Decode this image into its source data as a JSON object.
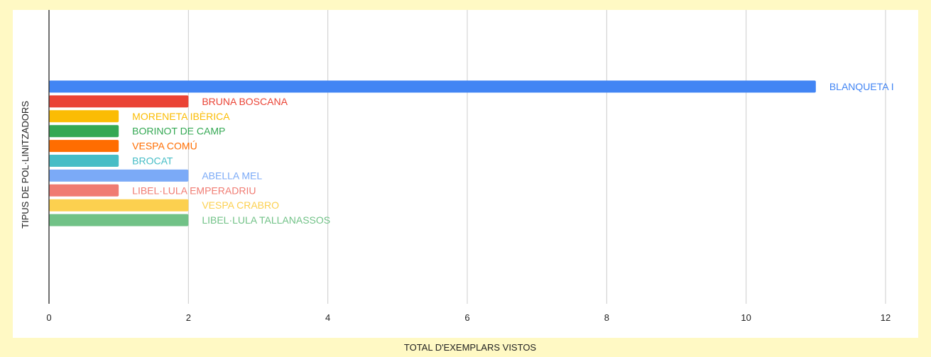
{
  "chart_data": {
    "type": "bar",
    "orientation": "horizontal",
    "xlabel": "TOTAL D'EXEMPLARS VISTOS",
    "ylabel": "TIPUS DE POL·LINITZADORS",
    "xlim": [
      0,
      12
    ],
    "x_ticks": [
      "0",
      "2",
      "4",
      "6",
      "8",
      "10",
      "12"
    ],
    "grid": true,
    "legend": "none",
    "categories": [
      "BLANQUETA I",
      "BRUNA BOSCANA",
      "MORENETA IBÈRICA",
      "BORINOT DE CAMP",
      "VESPA COMÚ",
      "BROCAT",
      "ABELLA MEL",
      "LIBEL·LULA EMPERADRIU",
      "VESPA CRABRO",
      "LIBEL·LULA TALLANASSOS"
    ],
    "values": [
      11,
      2,
      1,
      1,
      1,
      1,
      2,
      1,
      2,
      2
    ],
    "colors": [
      "#4285f4",
      "#ea4335",
      "#fbbc04",
      "#34a853",
      "#ff6d01",
      "#46bdc6",
      "#7baaf7",
      "#f07b72",
      "#fcd04f",
      "#71c287"
    ],
    "background_color": "#fff9c4",
    "axis_color": "#333333",
    "grid_color": "#cccccc",
    "text_color": "#222222"
  }
}
